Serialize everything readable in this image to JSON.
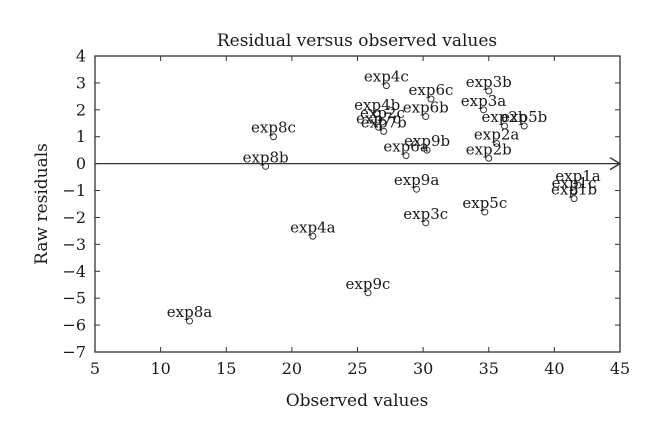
{
  "chart_data": {
    "type": "scatter",
    "title": "Residual versus observed values",
    "xlabel": "Observed values",
    "ylabel": "Raw residuals",
    "xlim": [
      5,
      45
    ],
    "ylim": [
      -7,
      4
    ],
    "xticks": [
      5,
      10,
      15,
      20,
      25,
      30,
      35,
      40,
      45
    ],
    "yticks": [
      4,
      3,
      2,
      1,
      0,
      -1,
      -2,
      -3,
      -4,
      -5,
      -6,
      -7
    ],
    "grid": false,
    "zero_line_arrow": true,
    "points": [
      {
        "label": "exp4c",
        "x": 27.2,
        "y": 2.9
      },
      {
        "label": "exp3b",
        "x": 35.0,
        "y": 2.7
      },
      {
        "label": "exp6c",
        "x": 30.6,
        "y": 2.4
      },
      {
        "label": "exp3a",
        "x": 34.6,
        "y": 2.0
      },
      {
        "label": "exp4b",
        "x": 26.5,
        "y": 1.85
      },
      {
        "label": "exp6b",
        "x": 30.2,
        "y": 1.75
      },
      {
        "label": "exp2c",
        "x": 26.9,
        "y": 1.55
      },
      {
        "label": "exp2b",
        "x": 36.2,
        "y": 1.4
      },
      {
        "label": "exp5b",
        "x": 37.7,
        "y": 1.4
      },
      {
        "label": "exp7c",
        "x": 26.6,
        "y": 1.35
      },
      {
        "label": "exp7b",
        "x": 27.0,
        "y": 1.2
      },
      {
        "label": "exp8c",
        "x": 18.6,
        "y": 1.0
      },
      {
        "label": "exp2a",
        "x": 35.6,
        "y": 0.75
      },
      {
        "label": "exp9b",
        "x": 30.3,
        "y": 0.5
      },
      {
        "label": "exp6a",
        "x": 28.7,
        "y": 0.3
      },
      {
        "label": "exp2b",
        "x": 35.0,
        "y": 0.2
      },
      {
        "label": "exp8b",
        "x": 18.0,
        "y": -0.1
      },
      {
        "label": "exp1a",
        "x": 41.8,
        "y": -0.8
      },
      {
        "label": "exp1c",
        "x": 41.5,
        "y": -1.05
      },
      {
        "label": "exp1b",
        "x": 41.5,
        "y": -1.3
      },
      {
        "label": "exp9a",
        "x": 29.5,
        "y": -0.95
      },
      {
        "label": "exp5c",
        "x": 34.7,
        "y": -1.8
      },
      {
        "label": "exp3c",
        "x": 30.2,
        "y": -2.2
      },
      {
        "label": "exp4a",
        "x": 21.6,
        "y": -2.7
      },
      {
        "label": "exp9c",
        "x": 25.8,
        "y": -4.8
      },
      {
        "label": "exp8a",
        "x": 12.2,
        "y": -5.85
      }
    ]
  }
}
